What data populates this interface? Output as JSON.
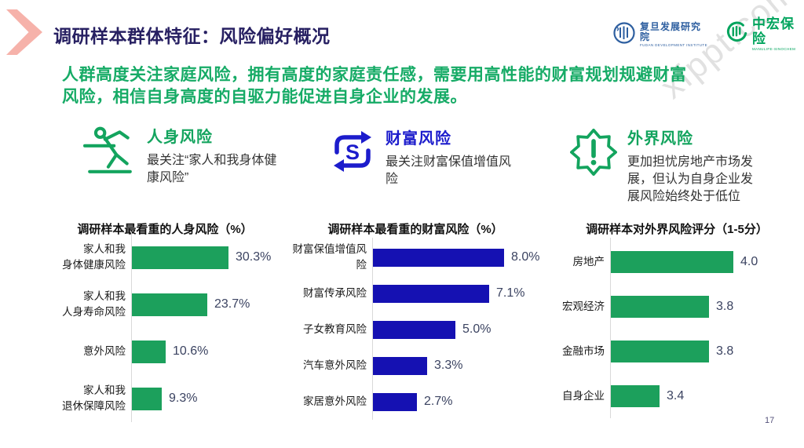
{
  "watermark": "xfppt.com",
  "page_number": "17",
  "header": {
    "title": "调研样本群体特征：风险偏好概况",
    "chevron_color": "#f6b2aa",
    "logos": [
      {
        "name": "fudan-development-institute",
        "text": "复旦发展研究院",
        "subtext": "FUDAN DEVELOPMENT INSTITUTE",
        "color": "#2e5fa0"
      },
      {
        "name": "manulife-sinochem",
        "text": "中宏保险",
        "subtext": "MANULIFE-SINOCHEM",
        "color": "#00a45d"
      }
    ]
  },
  "summary": {
    "color": "#16ab66",
    "line1": "人群高度关注家庭风险，拥有高度的家庭责任感，需要用高性能的财富规划规避财富",
    "line2": "风险，相信自身高度的自驱力能促进自身企业的发展。"
  },
  "sections": [
    {
      "icon": "falling-person-icon",
      "title": "人身风险",
      "color": "#13a45e",
      "desc": "最关注“家人和我身体健康风险”"
    },
    {
      "icon": "money-cycle-icon",
      "title": "财富风险",
      "color": "#1c1ccc",
      "desc": "最关注财富保值增值风险"
    },
    {
      "icon": "alert-badge-icon",
      "title": "外界风险",
      "color": "#13a45e",
      "desc": "更加担忧房地产市场发展，但认为自身企业发展风险始终处于低位"
    }
  ],
  "chart_data": [
    {
      "type": "bar",
      "orientation": "horizontal",
      "grid": false,
      "title": "调研样本最看重的人身风险（%）",
      "categories": [
        "家人和我\n身体健康风险",
        "家人和我\n人身寿命风险",
        "意外风险",
        "家人和我\n退休保障风险"
      ],
      "values": [
        30.3,
        23.7,
        10.6,
        9.3
      ],
      "value_labels": [
        "30.3%",
        "23.7%",
        "10.6%",
        "9.3%"
      ],
      "bar_color": "#1ca05c",
      "xlim": [
        0,
        40
      ]
    },
    {
      "type": "bar",
      "orientation": "horizontal",
      "grid": false,
      "title": "调研样本最看重的财富风险（%）",
      "categories": [
        "财富保值增值风险",
        "财富传承风险",
        "子女教育风险",
        "汽车意外风险",
        "家居意外风险"
      ],
      "values": [
        8.0,
        7.1,
        5.0,
        3.3,
        2.7
      ],
      "value_labels": [
        "8.0%",
        "7.1%",
        "5.0%",
        "3.3%",
        "2.7%"
      ],
      "bar_color": "#1511b2",
      "xlim": [
        0,
        10
      ]
    },
    {
      "type": "bar",
      "orientation": "horizontal",
      "grid": false,
      "title": "调研样本对外界风险评分（1-5分）",
      "categories": [
        "房地产",
        "宏观经济",
        "金融市场",
        "自身企业"
      ],
      "values": [
        4.0,
        3.8,
        3.8,
        3.4
      ],
      "value_labels": [
        "4.0",
        "3.8",
        "3.8",
        "3.4"
      ],
      "bar_color": "#1ca05c",
      "xlim": [
        3,
        5
      ]
    }
  ]
}
